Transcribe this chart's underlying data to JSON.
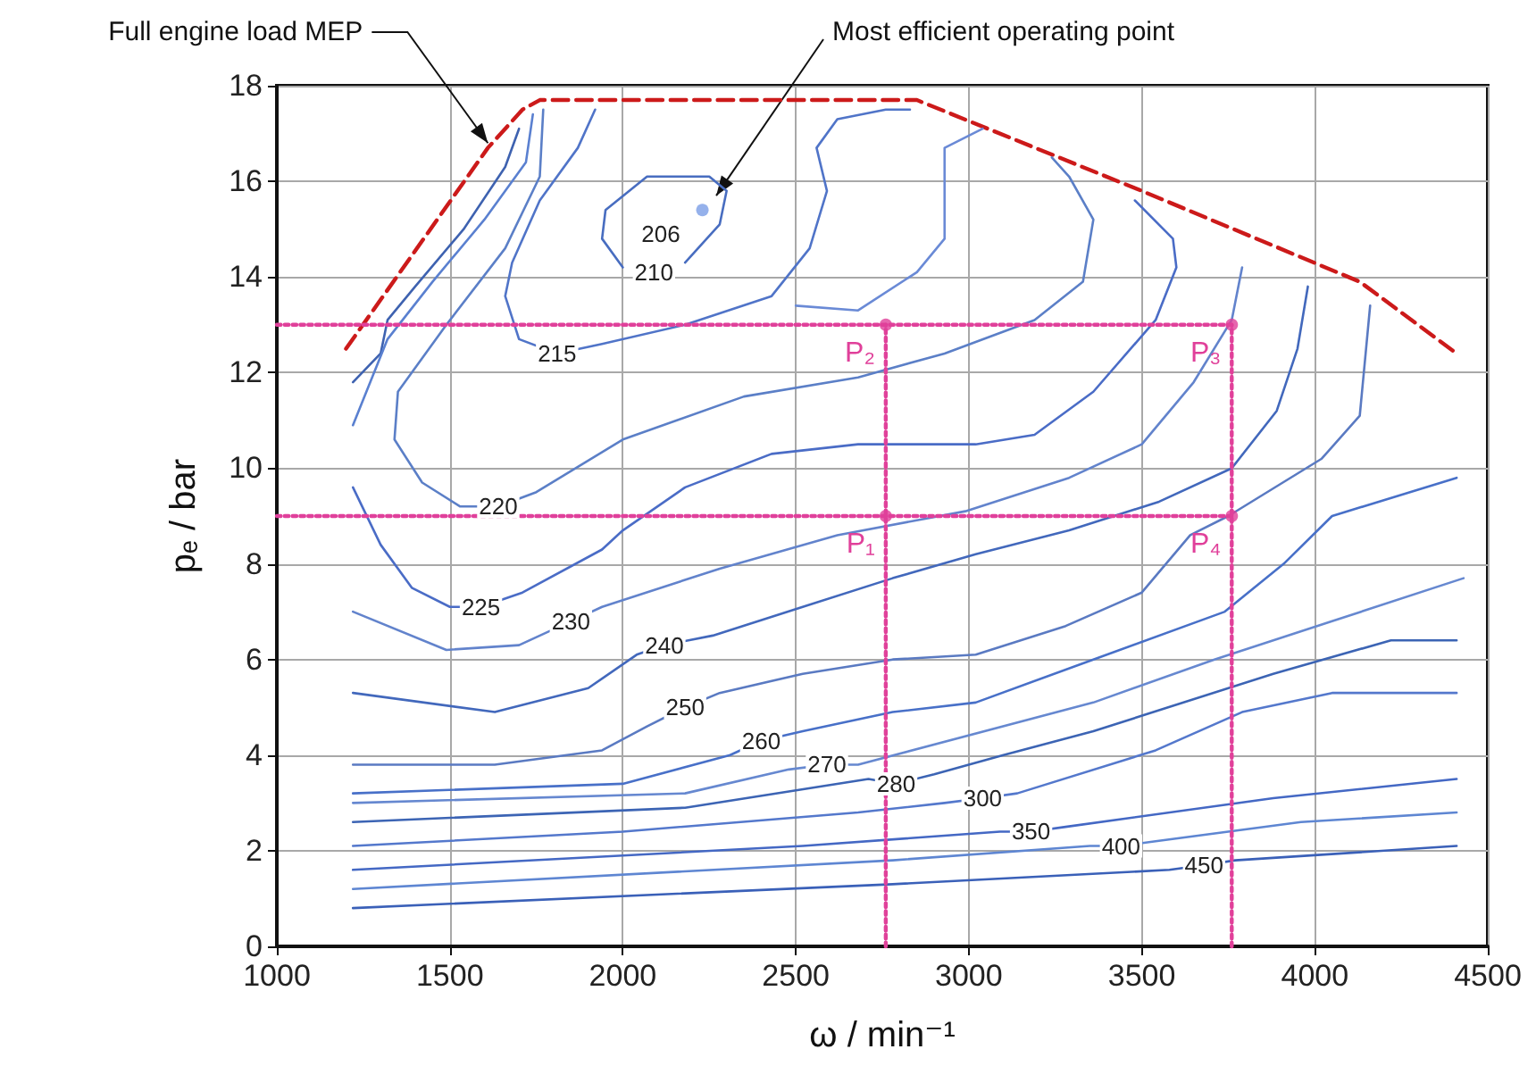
{
  "chart_data": {
    "type": "line",
    "xlabel": "ω / min⁻¹",
    "ylabel": "pₑ / bar",
    "xlim": [
      1000,
      4500
    ],
    "xticks": [
      1000,
      1500,
      2000,
      2500,
      3000,
      3500,
      4000,
      4500
    ],
    "ylim": [
      0,
      18
    ],
    "yticks": [
      0,
      2,
      4,
      6,
      8,
      10,
      12,
      14,
      16,
      18
    ],
    "grid": true,
    "marker": "none",
    "line_style": "solid",
    "series": [
      {
        "color": "#cc1a1a",
        "line_style": "dashed",
        "x": [
          1200,
          1610,
          1710,
          1760,
          2850,
          3500,
          4130,
          4410
        ],
        "values": [
          12.5,
          16.7,
          17.5,
          17.7,
          17.7,
          15.8,
          13.9,
          12.4
        ]
      },
      {
        "type": "scatter",
        "marker": "circle",
        "color": "#7b9de6",
        "x": [
          2230
        ],
        "values": [
          15.4
        ]
      },
      {
        "color": "#486dc0",
        "x": [
          2180,
          2280,
          2300,
          2250,
          2070,
          1950,
          1940,
          2000
        ],
        "values": [
          14.3,
          15.1,
          15.8,
          16.1,
          16.1,
          15.4,
          14.8,
          14.2
        ]
      },
      {
        "color": "#5074c8",
        "x": [
          1920,
          1870,
          1760,
          1680,
          1660,
          1700,
          1810,
          1940,
          2180,
          2430,
          2540,
          2590,
          2560,
          2620,
          2760,
          2830
        ],
        "values": [
          17.5,
          16.7,
          15.6,
          14.3,
          13.6,
          12.7,
          12.4,
          12.6,
          13.0,
          13.6,
          14.6,
          15.8,
          16.7,
          17.3,
          17.5,
          17.5
        ]
      },
      {
        "color": "#6a8ad6",
        "x": [
          2500,
          2680,
          2850,
          2930,
          2930,
          3040
        ],
        "values": [
          13.4,
          13.3,
          14.1,
          14.8,
          16.7,
          17.1
        ]
      },
      {
        "color": "#3e62b0",
        "x": [
          1700,
          1660,
          1540,
          1400,
          1320,
          1300,
          1220
        ],
        "values": [
          17.1,
          16.3,
          15.0,
          13.8,
          13.1,
          12.4,
          11.8
        ]
      },
      {
        "color": "#5a80d0",
        "x": [
          1740,
          1720,
          1600,
          1450,
          1320,
          1220
        ],
        "values": [
          17.4,
          16.4,
          15.2,
          13.9,
          12.7,
          10.9
        ]
      },
      {
        "color": "#5b7fc7",
        "x": [
          1770,
          1760,
          1660,
          1490,
          1350,
          1340,
          1420,
          1530,
          1640,
          1750,
          2000,
          2350,
          2680,
          2930,
          3190,
          3330,
          3360,
          3290,
          3240
        ],
        "values": [
          17.5,
          16.1,
          14.6,
          13.0,
          11.6,
          10.6,
          9.7,
          9.2,
          9.2,
          9.5,
          10.6,
          11.5,
          11.9,
          12.4,
          13.1,
          13.9,
          15.2,
          16.1,
          16.5
        ]
      },
      {
        "color": "#4a6cc6",
        "x": [
          1220,
          1300,
          1390,
          1500,
          1590,
          1710,
          1940,
          2000,
          2180,
          2430,
          2680,
          3020,
          3190,
          3360,
          3540,
          3600,
          3590,
          3480
        ],
        "values": [
          9.6,
          8.4,
          7.5,
          7.1,
          7.1,
          7.4,
          8.3,
          8.7,
          9.6,
          10.3,
          10.5,
          10.5,
          10.7,
          11.6,
          13.1,
          14.2,
          14.8,
          15.6
        ]
      },
      {
        "color": "#6283cc",
        "x": [
          1220,
          1490,
          1700,
          1850,
          1940,
          2280,
          2620,
          2990,
          3290,
          3500,
          3650,
          3760,
          3790
        ],
        "values": [
          7.0,
          6.2,
          6.3,
          6.8,
          7.1,
          7.9,
          8.6,
          9.1,
          9.8,
          10.5,
          11.8,
          13.1,
          14.2
        ]
      },
      {
        "color": "#4268bc",
        "x": [
          1220,
          1630,
          1900,
          2040,
          2120,
          2260,
          2520,
          2780,
          3020,
          3290,
          3550,
          3760,
          3890,
          3950,
          3980
        ],
        "values": [
          5.3,
          4.9,
          5.4,
          6.1,
          6.3,
          6.5,
          7.1,
          7.7,
          8.2,
          8.7,
          9.3,
          10.0,
          11.2,
          12.5,
          13.8
        ]
      },
      {
        "color": "#5a7ac2",
        "x": [
          1220,
          1630,
          1940,
          2070,
          2180,
          2280,
          2520,
          2780,
          3020,
          3280,
          3500,
          3640,
          3750,
          4020,
          4130,
          4160
        ],
        "values": [
          3.8,
          3.8,
          4.1,
          4.6,
          5.0,
          5.3,
          5.7,
          6.0,
          6.1,
          6.7,
          7.4,
          8.6,
          9.0,
          10.2,
          11.1,
          13.4
        ]
      },
      {
        "color": "#4870c8",
        "x": [
          1220,
          2000,
          2310,
          2400,
          2520,
          2780,
          3020,
          3360,
          3740,
          3910,
          4050,
          4410
        ],
        "values": [
          3.2,
          3.4,
          4.0,
          4.3,
          4.5,
          4.9,
          5.1,
          6.0,
          7.0,
          8.0,
          9.0,
          9.8
        ]
      },
      {
        "color": "#6688d0",
        "x": [
          1220,
          2180,
          2480,
          2590,
          2680,
          3360,
          3710,
          4050,
          4430
        ],
        "values": [
          3.0,
          3.2,
          3.7,
          3.8,
          3.8,
          5.1,
          6.0,
          6.8,
          7.7
        ]
      },
      {
        "color": "#3c64b4",
        "x": [
          1220,
          2180,
          2710,
          2790,
          2900,
          3100,
          3360,
          3880,
          4220,
          4410
        ],
        "values": [
          2.6,
          2.9,
          3.5,
          3.4,
          3.6,
          4.0,
          4.5,
          5.7,
          6.4,
          6.4
        ]
      },
      {
        "color": "#5478cc",
        "x": [
          1220,
          2000,
          2680,
          2930,
          3040,
          3140,
          3540,
          3790,
          4050,
          4410
        ],
        "values": [
          2.1,
          2.4,
          2.8,
          3.0,
          3.1,
          3.2,
          4.1,
          4.9,
          5.3,
          5.3
        ]
      },
      {
        "color": "#4468c4",
        "x": [
          1220,
          2520,
          3090,
          3180,
          3280,
          3880,
          4410
        ],
        "values": [
          1.6,
          2.1,
          2.4,
          2.4,
          2.5,
          3.1,
          3.5
        ]
      },
      {
        "color": "#5e86d2",
        "x": [
          1220,
          2780,
          3350,
          3440,
          3540,
          3960,
          4410
        ],
        "values": [
          1.2,
          1.8,
          2.1,
          2.1,
          2.2,
          2.6,
          2.8
        ]
      },
      {
        "color": "#3a60b8",
        "x": [
          1220,
          2780,
          3580,
          3680,
          3770,
          4410
        ],
        "values": [
          0.8,
          1.3,
          1.6,
          1.7,
          1.8,
          2.1
        ]
      },
      {
        "color": "#e0409a",
        "line_style": "dotted",
        "x": [
          1000,
          3760
        ],
        "values": [
          13,
          13
        ]
      },
      {
        "color": "#e0409b",
        "line_style": "dotted",
        "x": [
          1000,
          3760
        ],
        "values": [
          9,
          9
        ]
      },
      {
        "color": "#e0419a",
        "line_style": "dotted",
        "x": [
          2760,
          2760
        ],
        "values": [
          0,
          13
        ]
      },
      {
        "color": "#e1409a",
        "line_style": "dotted",
        "x": [
          3760,
          3760
        ],
        "values": [
          0,
          13
        ]
      },
      {
        "type": "scatter",
        "marker": "circle",
        "color": "#e0409a",
        "x": [
          2760,
          2760,
          3760,
          3760
        ],
        "values": [
          9,
          13,
          13,
          9
        ]
      }
    ],
    "annotations": [
      {
        "text": "Full engine load MEP",
        "x": 1610,
        "y": 16.8
      },
      {
        "text": "Most efficient operating point",
        "x": 2270,
        "y": 15.7
      },
      {
        "text": "206",
        "x": 2110,
        "y": 14.9
      },
      {
        "text": "210",
        "x": 2090,
        "y": 14.1
      },
      {
        "text": "215",
        "x": 1810,
        "y": 12.4
      },
      {
        "text": "220",
        "x": 1640,
        "y": 9.2
      },
      {
        "text": "225",
        "x": 1590,
        "y": 7.1
      },
      {
        "text": "230",
        "x": 1850,
        "y": 6.8
      },
      {
        "text": "240",
        "x": 2120,
        "y": 6.3
      },
      {
        "text": "250",
        "x": 2180,
        "y": 5.0
      },
      {
        "text": "260",
        "x": 2400,
        "y": 4.3
      },
      {
        "text": "270",
        "x": 2590,
        "y": 3.8
      },
      {
        "text": "280",
        "x": 2790,
        "y": 3.4
      },
      {
        "text": "300",
        "x": 3040,
        "y": 3.1
      },
      {
        "text": "350",
        "x": 3180,
        "y": 2.4
      },
      {
        "text": "400",
        "x": 3440,
        "y": 2.1
      },
      {
        "text": "450",
        "x": 3680,
        "y": 1.7
      },
      {
        "text": "P₁",
        "x": 2760,
        "y": 9
      },
      {
        "text": "P₂",
        "x": 2760,
        "y": 13
      },
      {
        "text": "P₃",
        "x": 3760,
        "y": 13
      },
      {
        "text": "P₄",
        "x": 3760,
        "y": 9
      }
    ]
  }
}
